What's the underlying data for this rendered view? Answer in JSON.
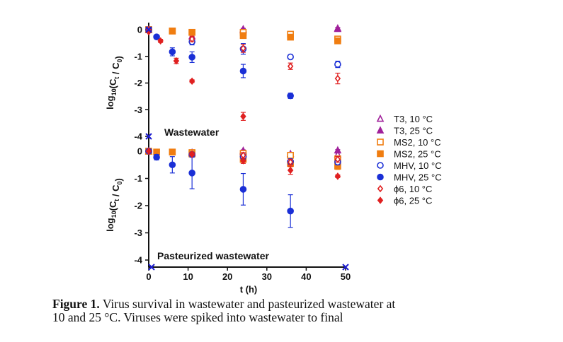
{
  "colors": {
    "T3": "#a0209a",
    "MS2": "#f07d10",
    "MHV": "#1a2fd6",
    "phi6": "#e02020",
    "axis": "#111111",
    "origin_marker": "#1b1bd0"
  },
  "chart_data": [
    {
      "type": "scatter",
      "title": "Wastewater",
      "ylabel_main": "log",
      "ylabel_sub": "10",
      "ylabel_rest": "(C",
      "ylabel_t": "t",
      "ylabel_slash": " / C",
      "ylabel_zero": "0",
      "ylabel_close": ")",
      "ylim": [
        -4.1,
        0.2
      ],
      "yticks": [
        "0",
        "-1",
        "-2",
        "-3",
        "-4"
      ],
      "series": [
        {
          "name": "T3, 10 °C",
          "marker": "triangle-open",
          "color": "T3",
          "x": [
            0,
            11,
            24,
            48
          ],
          "y": [
            0,
            -0.25,
            -0.02,
            0.03
          ],
          "err": [
            0,
            0.1,
            0.05,
            0.05
          ]
        },
        {
          "name": "T3, 25 °C",
          "marker": "triangle-filled",
          "color": "T3",
          "x": [
            0,
            24,
            48
          ],
          "y": [
            0,
            0.02,
            0.05
          ],
          "err": [
            0,
            0.03,
            0.03
          ]
        },
        {
          "name": "MS2, 10 °C",
          "marker": "square-open",
          "color": "MS2",
          "x": [
            0,
            6,
            11,
            24,
            36,
            48
          ],
          "y": [
            0,
            -0.05,
            -0.1,
            -0.1,
            -0.17,
            -0.35
          ],
          "err": [
            0,
            0.03,
            0.05,
            0.05,
            0.08,
            0.1
          ]
        },
        {
          "name": "MS2, 25 °C",
          "marker": "square-filled",
          "color": "MS2",
          "x": [
            0,
            6,
            11,
            24,
            36,
            48
          ],
          "y": [
            0,
            -0.05,
            -0.1,
            -0.22,
            -0.28,
            -0.42
          ],
          "err": [
            0,
            0.03,
            0.05,
            0.07,
            0.08,
            0.1
          ]
        },
        {
          "name": "MHV, 10 °C",
          "marker": "circle-open",
          "color": "MHV",
          "x": [
            0,
            11,
            24,
            36,
            48
          ],
          "y": [
            0,
            -0.45,
            -0.72,
            -1.02,
            -1.3
          ],
          "err": [
            0,
            0.12,
            0.2,
            0.08,
            0.12
          ]
        },
        {
          "name": "MHV, 25 °C",
          "marker": "circle-filled",
          "color": "MHV",
          "x": [
            0,
            2,
            6,
            11,
            24,
            36
          ],
          "y": [
            0,
            -0.27,
            -0.83,
            -1.03,
            -1.55,
            -2.48
          ],
          "err": [
            0,
            0.05,
            0.15,
            0.2,
            0.25,
            0.1
          ]
        },
        {
          "name": "ϕ6, 10 °C",
          "marker": "diamond-open",
          "color": "phi6",
          "x": [
            0,
            11,
            24,
            36,
            48
          ],
          "y": [
            0,
            -0.35,
            -0.7,
            -1.37,
            -1.83
          ],
          "err": [
            0,
            0.1,
            0.15,
            0.12,
            0.2
          ]
        },
        {
          "name": "ϕ6, 25 °C",
          "marker": "diamond-filled",
          "color": "phi6",
          "x": [
            0,
            3,
            7,
            11,
            24
          ],
          "y": [
            -0.08,
            -0.42,
            -1.17,
            -1.93,
            -3.25
          ],
          "err": [
            0,
            0.06,
            0.1,
            0.05,
            0.15
          ]
        }
      ]
    },
    {
      "type": "scatter",
      "title": "Pasteurized wastewater",
      "ylabel_main": "log",
      "ylabel_sub": "10",
      "ylabel_rest": "(C",
      "ylabel_t": "t",
      "ylabel_slash": " / C",
      "ylabel_zero": "0",
      "ylabel_close": ")",
      "xlabel": "t (h)",
      "xlim": [
        0,
        50
      ],
      "xticks": [
        "0",
        "10",
        "20",
        "30",
        "40",
        "50"
      ],
      "ylim": [
        -4.3,
        0.2
      ],
      "yticks": [
        "0",
        "-1",
        "-2",
        "-3",
        "-4"
      ],
      "series": [
        {
          "name": "T3, 10 °C",
          "marker": "triangle-open",
          "color": "T3",
          "x": [
            0,
            11,
            24,
            36,
            48
          ],
          "y": [
            0,
            -0.08,
            -0.02,
            -0.1,
            -0.12
          ],
          "err": [
            0,
            0.05,
            0.05,
            0.05,
            0.05
          ]
        },
        {
          "name": "T3, 25 °C",
          "marker": "triangle-filled",
          "color": "T3",
          "x": [
            0,
            11,
            24,
            48
          ],
          "y": [
            0,
            -0.05,
            0.02,
            0.03
          ],
          "err": [
            0,
            0.03,
            0.03,
            0.03
          ]
        },
        {
          "name": "MS2, 10 °C",
          "marker": "square-open",
          "color": "MS2",
          "x": [
            0,
            11,
            24,
            36,
            48
          ],
          "y": [
            0,
            -0.05,
            -0.08,
            -0.15,
            -0.28
          ],
          "err": [
            0,
            0.05,
            0.05,
            0.05,
            0.1
          ]
        },
        {
          "name": "MS2, 25 °C",
          "marker": "square-filled",
          "color": "MS2",
          "x": [
            0,
            2,
            6,
            11,
            24,
            36,
            48
          ],
          "y": [
            0,
            -0.03,
            -0.03,
            -0.1,
            -0.3,
            -0.45,
            -0.55
          ],
          "err": [
            0,
            0.03,
            0.03,
            0.05,
            0.1,
            0.12,
            0.12
          ]
        },
        {
          "name": "MHV, 10 °C",
          "marker": "circle-open",
          "color": "MHV",
          "x": [
            0,
            11,
            24,
            36,
            48
          ],
          "y": [
            0,
            -0.12,
            -0.2,
            -0.38,
            -0.4
          ],
          "err": [
            0,
            0.08,
            0.1,
            0.1,
            0.1
          ]
        },
        {
          "name": "MHV, 25 °C",
          "marker": "circle-filled",
          "color": "MHV",
          "x": [
            0,
            2,
            6,
            11,
            24,
            36
          ],
          "y": [
            0,
            -0.22,
            -0.5,
            -0.8,
            -1.4,
            -2.2
          ],
          "err": [
            0,
            0.1,
            0.3,
            0.58,
            0.58,
            0.6
          ]
        },
        {
          "name": "ϕ6, 10 °C",
          "marker": "diamond-open",
          "color": "phi6",
          "x": [
            0,
            11,
            24,
            36,
            48
          ],
          "y": [
            0,
            -0.1,
            -0.15,
            -0.4,
            -0.3
          ],
          "err": [
            0,
            0.05,
            0.1,
            0.1,
            0.1
          ]
        },
        {
          "name": "ϕ6, 25 °C",
          "marker": "diamond-filled",
          "color": "phi6",
          "x": [
            0,
            11,
            24,
            36,
            48
          ],
          "y": [
            0,
            -0.12,
            -0.35,
            -0.7,
            -0.92
          ],
          "err": [
            0,
            0.05,
            0.1,
            0.15,
            0.05
          ]
        }
      ]
    }
  ],
  "legend": [
    {
      "label": "T3, 10 °C",
      "marker": "triangle-open",
      "color": "T3"
    },
    {
      "label": "T3, 25 °C",
      "marker": "triangle-filled",
      "color": "T3"
    },
    {
      "label": "MS2, 10 °C",
      "marker": "square-open",
      "color": "MS2"
    },
    {
      "label": "MS2, 25 °C",
      "marker": "square-filled",
      "color": "MS2"
    },
    {
      "label": "MHV, 10 °C",
      "marker": "circle-open",
      "color": "MHV"
    },
    {
      "label": "MHV, 25 °C",
      "marker": "circle-filled",
      "color": "MHV"
    },
    {
      "label": "ϕ6, 10 °C",
      "marker": "diamond-open",
      "color": "phi6"
    },
    {
      "label": "ϕ6, 25 °C",
      "marker": "diamond-filled",
      "color": "phi6"
    }
  ],
  "caption": {
    "label": "Figure 1.",
    "line1": " Virus survival in wastewater and pasteurized wastewater at",
    "line2": "10 and 25 °C. Viruses were spiked into wastewater to final"
  }
}
